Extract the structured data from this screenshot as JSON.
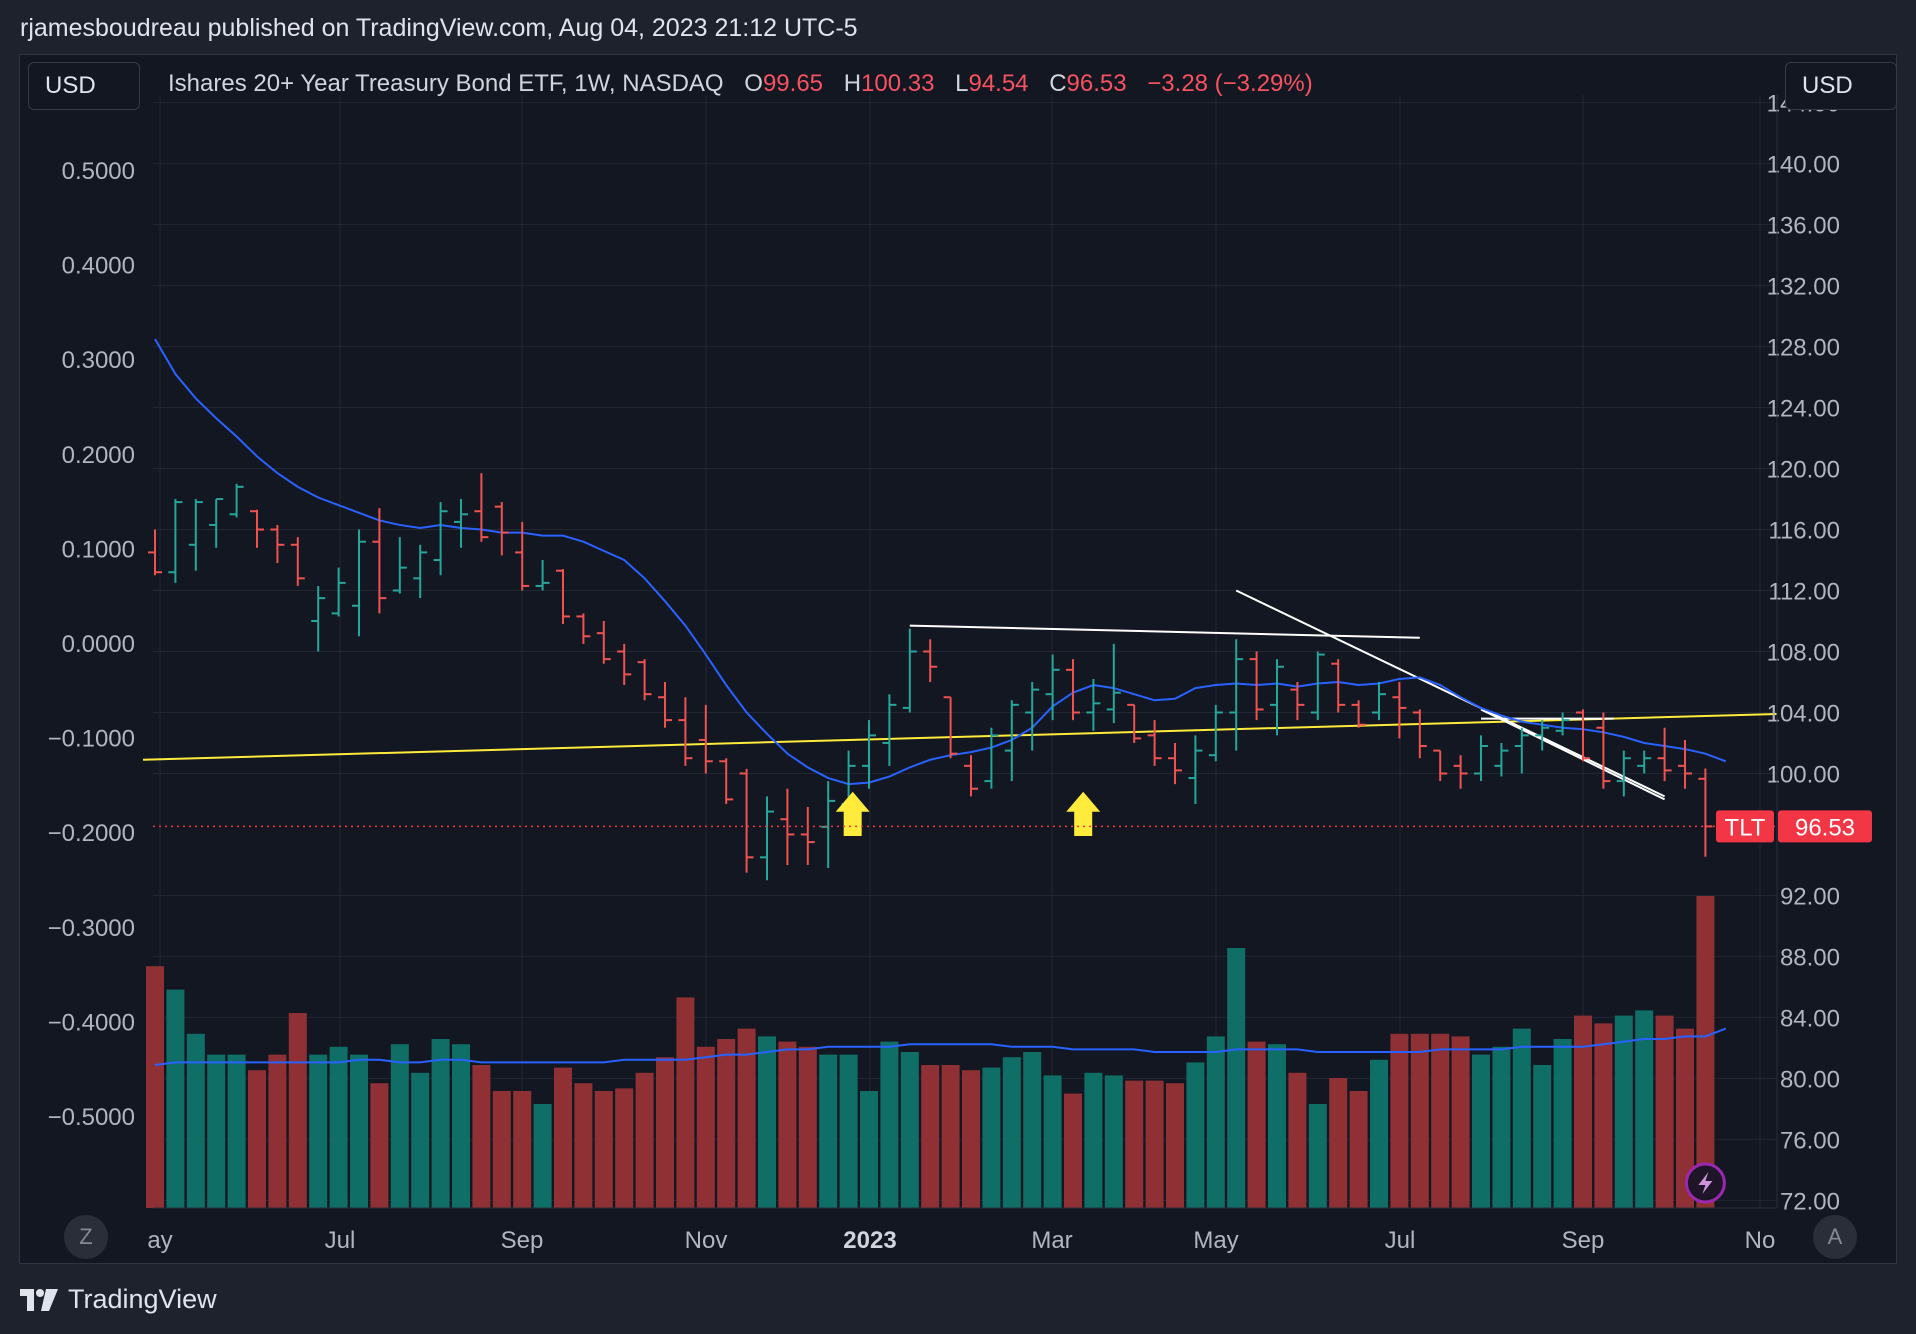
{
  "header": {
    "byline": "rjamesboudreau published on TradingView.com, Aug 04, 2023 21:12 UTC-5"
  },
  "left_currency": "USD",
  "right_currency": "USD",
  "legend": {
    "title": "Ishares 20+ Year Treasury Bond ETF, 1W, NASDAQ",
    "open_label": "O",
    "open": "99.65",
    "high_label": "H",
    "high": "100.33",
    "low_label": "L",
    "low": "94.54",
    "close_label": "C",
    "close": "96.53",
    "change": "−3.28 (−3.29%)"
  },
  "price_tag": {
    "symbol": "TLT",
    "value": "96.53"
  },
  "bottom_buttons": {
    "left": "Z",
    "right": "A"
  },
  "footer": {
    "brand": "TradingView"
  },
  "colors": {
    "up": "#26a69a",
    "down": "#ef5350",
    "vol_up": "#0f6e66",
    "vol_down": "#8e3034",
    "ma": "#2962ff",
    "trendline": "#ffeb3b",
    "annot": "#ffffff",
    "arrow": "#ffeb3b",
    "last_price": "#f23645"
  },
  "chart_data": {
    "type": "ohlc",
    "interval": "1W",
    "right_axis": {
      "ticks": [
        "72.00",
        "76.00",
        "80.00",
        "84.00",
        "88.00",
        "92.00",
        "100.00",
        "104.00",
        "108.00",
        "112.00",
        "116.00",
        "120.00",
        "124.00",
        "128.00",
        "132.00",
        "136.00",
        "140.00",
        "144.00"
      ],
      "range": [
        71.5,
        144.5
      ]
    },
    "left_axis": {
      "ticks": [
        "0.5000",
        "0.4000",
        "0.3000",
        "0.2000",
        "0.1000",
        "0.0000",
        "−0.1000",
        "−0.2000",
        "−0.3000",
        "−0.4000",
        "−0.5000"
      ]
    },
    "x_labels": [
      "ay",
      "Jul",
      "Sep",
      "Nov",
      "2023",
      "Mar",
      "May",
      "Jul",
      "Sep",
      "No"
    ],
    "bars": [
      {
        "o": 114.5,
        "h": 116.0,
        "l": 113.0,
        "c": 113.2,
        "v": 0.93
      },
      {
        "o": 113.2,
        "h": 118.0,
        "l": 112.5,
        "c": 117.8,
        "v": 0.84
      },
      {
        "o": 115.0,
        "h": 118.0,
        "l": 113.3,
        "c": 117.8,
        "v": 0.67
      },
      {
        "o": 116.3,
        "h": 118.0,
        "l": 114.8,
        "c": 118.0,
        "v": 0.59
      },
      {
        "o": 117.0,
        "h": 119.0,
        "l": 116.8,
        "c": 118.8,
        "v": 0.59
      },
      {
        "o": 117.2,
        "h": 117.3,
        "l": 114.8,
        "c": 116.0,
        "v": 0.53
      },
      {
        "o": 116.0,
        "h": 116.3,
        "l": 113.8,
        "c": 115.0,
        "v": 0.59
      },
      {
        "o": 115.0,
        "h": 115.5,
        "l": 112.3,
        "c": 112.8,
        "v": 0.75
      },
      {
        "o": 110.0,
        "h": 112.3,
        "l": 108.0,
        "c": 111.5,
        "v": 0.59
      },
      {
        "o": 110.5,
        "h": 113.5,
        "l": 110.3,
        "c": 112.5,
        "v": 0.62
      },
      {
        "o": 111.0,
        "h": 116.0,
        "l": 109.0,
        "c": 115.2,
        "v": 0.59
      },
      {
        "o": 115.2,
        "h": 117.4,
        "l": 110.5,
        "c": 111.5,
        "v": 0.48
      },
      {
        "o": 112.0,
        "h": 115.5,
        "l": 111.8,
        "c": 113.5,
        "v": 0.63
      },
      {
        "o": 112.8,
        "h": 115.0,
        "l": 111.5,
        "c": 114.5,
        "v": 0.52
      },
      {
        "o": 114.0,
        "h": 117.8,
        "l": 113.0,
        "c": 117.2,
        "v": 0.65
      },
      {
        "o": 116.5,
        "h": 118.0,
        "l": 114.8,
        "c": 117.0,
        "v": 0.63
      },
      {
        "o": 117.2,
        "h": 119.7,
        "l": 115.2,
        "c": 115.5,
        "v": 0.55
      },
      {
        "o": 117.5,
        "h": 117.8,
        "l": 114.3,
        "c": 115.8,
        "v": 0.45
      },
      {
        "o": 114.5,
        "h": 116.5,
        "l": 112.0,
        "c": 112.3,
        "v": 0.45
      },
      {
        "o": 112.3,
        "h": 114.0,
        "l": 112.0,
        "c": 112.5,
        "v": 0.4
      },
      {
        "o": 113.3,
        "h": 113.4,
        "l": 109.8,
        "c": 110.3,
        "v": 0.54
      },
      {
        "o": 110.3,
        "h": 110.5,
        "l": 108.5,
        "c": 109.0,
        "v": 0.48
      },
      {
        "o": 109.2,
        "h": 110.0,
        "l": 107.2,
        "c": 107.5,
        "v": 0.45
      },
      {
        "o": 108.0,
        "h": 108.5,
        "l": 105.8,
        "c": 106.5,
        "v": 0.46
      },
      {
        "o": 107.3,
        "h": 107.5,
        "l": 104.8,
        "c": 105.2,
        "v": 0.52
      },
      {
        "o": 105.0,
        "h": 106.0,
        "l": 103.0,
        "c": 103.5,
        "v": 0.58
      },
      {
        "o": 103.5,
        "h": 105.0,
        "l": 100.5,
        "c": 101.0,
        "v": 0.81
      },
      {
        "o": 102.2,
        "h": 104.5,
        "l": 100.0,
        "c": 100.8,
        "v": 0.62
      },
      {
        "o": 100.8,
        "h": 101.0,
        "l": 98.0,
        "c": 98.3,
        "v": 0.65
      },
      {
        "o": 100.0,
        "h": 100.3,
        "l": 93.5,
        "c": 94.5,
        "v": 0.69
      },
      {
        "o": 94.5,
        "h": 98.5,
        "l": 93.0,
        "c": 97.5,
        "v": 0.66
      },
      {
        "o": 97.0,
        "h": 99.0,
        "l": 94.0,
        "c": 96.0,
        "v": 0.64
      },
      {
        "o": 96.0,
        "h": 97.8,
        "l": 94.0,
        "c": 95.5,
        "v": 0.62
      },
      {
        "o": 96.5,
        "h": 99.5,
        "l": 93.8,
        "c": 98.2,
        "v": 0.59
      },
      {
        "o": 98.0,
        "h": 101.5,
        "l": 97.0,
        "c": 100.5,
        "v": 0.59
      },
      {
        "o": 100.5,
        "h": 103.5,
        "l": 99.0,
        "c": 102.5,
        "v": 0.45
      },
      {
        "o": 102.0,
        "h": 105.2,
        "l": 100.5,
        "c": 104.5,
        "v": 0.64
      },
      {
        "o": 104.3,
        "h": 109.5,
        "l": 104.0,
        "c": 108.0,
        "v": 0.6
      },
      {
        "o": 108.0,
        "h": 108.8,
        "l": 106.0,
        "c": 107.0,
        "v": 0.55
      },
      {
        "o": 105.0,
        "h": 105.0,
        "l": 101.0,
        "c": 101.3,
        "v": 0.55
      },
      {
        "o": 100.5,
        "h": 101.2,
        "l": 98.5,
        "c": 99.0,
        "v": 0.53
      },
      {
        "o": 99.5,
        "h": 103.0,
        "l": 99.0,
        "c": 102.5,
        "v": 0.54
      },
      {
        "o": 101.5,
        "h": 104.8,
        "l": 99.5,
        "c": 104.5,
        "v": 0.58
      },
      {
        "o": 104.0,
        "h": 106.0,
        "l": 101.5,
        "c": 105.5,
        "v": 0.6
      },
      {
        "o": 105.2,
        "h": 107.8,
        "l": 103.5,
        "c": 106.8,
        "v": 0.51
      },
      {
        "o": 106.8,
        "h": 107.5,
        "l": 103.5,
        "c": 104.0,
        "v": 0.44
      },
      {
        "o": 104.0,
        "h": 106.2,
        "l": 102.8,
        "c": 104.6,
        "v": 0.52
      },
      {
        "o": 104.2,
        "h": 108.5,
        "l": 103.3,
        "c": 105.3,
        "v": 0.51
      },
      {
        "o": 104.5,
        "h": 104.5,
        "l": 102.0,
        "c": 102.3,
        "v": 0.49
      },
      {
        "o": 102.5,
        "h": 103.5,
        "l": 100.5,
        "c": 101.0,
        "v": 0.49
      },
      {
        "o": 101.0,
        "h": 102.0,
        "l": 99.3,
        "c": 100.2,
        "v": 0.48
      },
      {
        "o": 99.7,
        "h": 102.5,
        "l": 98.0,
        "c": 101.5,
        "v": 0.56
      },
      {
        "o": 101.2,
        "h": 104.5,
        "l": 100.8,
        "c": 104.0,
        "v": 0.66
      },
      {
        "o": 104.0,
        "h": 108.8,
        "l": 101.5,
        "c": 107.5,
        "v": 1.0
      },
      {
        "o": 107.5,
        "h": 108.0,
        "l": 103.5,
        "c": 104.2,
        "v": 0.64
      },
      {
        "o": 104.5,
        "h": 107.5,
        "l": 102.5,
        "c": 107.0,
        "v": 0.63
      },
      {
        "o": 105.5,
        "h": 106.0,
        "l": 103.5,
        "c": 104.5,
        "v": 0.52
      },
      {
        "o": 104.0,
        "h": 108.0,
        "l": 103.5,
        "c": 107.8,
        "v": 0.4
      },
      {
        "o": 107.2,
        "h": 107.5,
        "l": 104.0,
        "c": 104.5,
        "v": 0.5
      },
      {
        "o": 104.5,
        "h": 104.8,
        "l": 103.0,
        "c": 103.2,
        "v": 0.45
      },
      {
        "o": 104.0,
        "h": 106.0,
        "l": 103.5,
        "c": 105.2,
        "v": 0.57
      },
      {
        "o": 105.0,
        "h": 106.0,
        "l": 102.3,
        "c": 104.3,
        "v": 0.67
      },
      {
        "o": 104.0,
        "h": 104.2,
        "l": 101.0,
        "c": 101.8,
        "v": 0.67
      },
      {
        "o": 101.5,
        "h": 101.5,
        "l": 99.5,
        "c": 100.0,
        "v": 0.67
      },
      {
        "o": 100.5,
        "h": 101.2,
        "l": 99.0,
        "c": 100.0,
        "v": 0.66
      },
      {
        "o": 100.0,
        "h": 102.5,
        "l": 99.5,
        "c": 101.8,
        "v": 0.59
      },
      {
        "o": 100.5,
        "h": 102.0,
        "l": 99.8,
        "c": 101.5,
        "v": 0.62
      },
      {
        "o": 101.8,
        "h": 103.0,
        "l": 100.0,
        "c": 102.5,
        "v": 0.69
      },
      {
        "o": 102.5,
        "h": 103.5,
        "l": 101.5,
        "c": 103.0,
        "v": 0.55
      },
      {
        "o": 102.8,
        "h": 104.0,
        "l": 102.5,
        "c": 103.5,
        "v": 0.65
      },
      {
        "o": 104.0,
        "h": 104.2,
        "l": 100.8,
        "c": 101.0,
        "v": 0.74
      },
      {
        "o": 103.0,
        "h": 104.0,
        "l": 99.0,
        "c": 99.5,
        "v": 0.71
      },
      {
        "o": 99.5,
        "h": 101.5,
        "l": 98.5,
        "c": 101.0,
        "v": 0.74
      },
      {
        "o": 100.5,
        "h": 101.5,
        "l": 100.0,
        "c": 101.0,
        "v": 0.76
      },
      {
        "o": 101.0,
        "h": 103.0,
        "l": 99.5,
        "c": 100.2,
        "v": 0.74
      },
      {
        "o": 100.5,
        "h": 102.2,
        "l": 99.0,
        "c": 100.0,
        "v": 0.69
      },
      {
        "o": 99.65,
        "h": 100.33,
        "l": 94.54,
        "c": 96.53,
        "v": 1.2
      }
    ],
    "ma_price": [
      128.5,
      126.2,
      124.6,
      123.3,
      122.1,
      120.8,
      119.7,
      118.8,
      118.1,
      117.6,
      117.1,
      116.6,
      116.3,
      116.1,
      116.3,
      116.1,
      116.0,
      115.8,
      115.8,
      115.6,
      115.6,
      115.2,
      114.6,
      114.0,
      112.8,
      111.3,
      109.7,
      107.8,
      105.8,
      104.0,
      102.6,
      101.3,
      100.4,
      99.7,
      99.3,
      99.4,
      99.8,
      100.4,
      100.9,
      101.2,
      101.4,
      101.7,
      102.2,
      103.0,
      104.4,
      105.3,
      105.8,
      105.6,
      105.2,
      104.8,
      104.9,
      105.6,
      105.8,
      105.9,
      105.8,
      105.9,
      105.7,
      105.9,
      106.0,
      105.8,
      105.9,
      106.2,
      106.3,
      105.8,
      105.0,
      104.3,
      103.8,
      103.4,
      103.2,
      103.0,
      102.9,
      102.7,
      102.4,
      102.0,
      101.8,
      101.6,
      101.3,
      100.8
    ],
    "ma_volume": [
      0.55,
      0.56,
      0.56,
      0.56,
      0.56,
      0.56,
      0.56,
      0.56,
      0.56,
      0.56,
      0.57,
      0.57,
      0.56,
      0.56,
      0.57,
      0.57,
      0.56,
      0.56,
      0.56,
      0.56,
      0.56,
      0.56,
      0.56,
      0.57,
      0.57,
      0.57,
      0.57,
      0.58,
      0.59,
      0.59,
      0.6,
      0.61,
      0.61,
      0.62,
      0.62,
      0.62,
      0.62,
      0.63,
      0.63,
      0.63,
      0.63,
      0.63,
      0.62,
      0.62,
      0.62,
      0.61,
      0.61,
      0.61,
      0.61,
      0.6,
      0.6,
      0.6,
      0.6,
      0.61,
      0.61,
      0.61,
      0.61,
      0.6,
      0.6,
      0.6,
      0.6,
      0.6,
      0.6,
      0.61,
      0.61,
      0.61,
      0.61,
      0.62,
      0.62,
      0.62,
      0.62,
      0.63,
      0.64,
      0.65,
      0.65,
      0.66,
      0.66,
      0.69
    ]
  }
}
